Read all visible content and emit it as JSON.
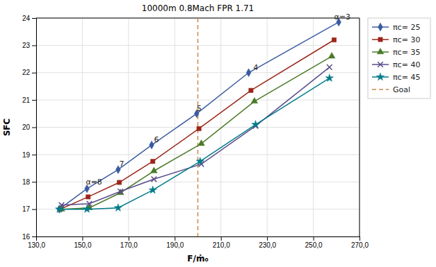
{
  "chart_data": {
    "type": "line",
    "title": "10000m 0.8Mach FPR 1.71",
    "x_label": "F/ṁ₀",
    "y_label": "SFC",
    "xlim": [
      130.0,
      270.0
    ],
    "ylim": [
      16.0,
      24.0
    ],
    "xticks": [
      {
        "value": 130.0,
        "label": "130,0"
      },
      {
        "value": 150.0,
        "label": "150,0"
      },
      {
        "value": 170.0,
        "label": "170,0"
      },
      {
        "value": 190.0,
        "label": "190,0"
      },
      {
        "value": 210.0,
        "label": "210,0"
      },
      {
        "value": 230.0,
        "label": "230,0"
      },
      {
        "value": 250.0,
        "label": "250,0"
      },
      {
        "value": 270.0,
        "label": "270,0"
      }
    ],
    "yticks": [
      16,
      17,
      18,
      19,
      20,
      21,
      22,
      23,
      24
    ],
    "grid": true,
    "legend": "right",
    "series": [
      {
        "name": "πc= 25",
        "color": "#3A5BA0",
        "marker": "diamond",
        "x": [
          140.0,
          152.0,
          165.5,
          180.0,
          199.5,
          222.0,
          261.0
        ],
        "values": [
          17.0,
          17.75,
          18.45,
          19.35,
          20.5,
          22.0,
          23.85
        ]
      },
      {
        "name": "πc= 30",
        "color": "#9B2518",
        "marker": "square",
        "x": [
          140.5,
          152.5,
          166.0,
          180.5,
          200.5,
          223.0,
          259.0
        ],
        "values": [
          17.0,
          17.45,
          17.98,
          18.75,
          19.95,
          21.35,
          23.2
        ]
      },
      {
        "name": "πc= 35",
        "color": "#4A7A28",
        "marker": "triangle",
        "x": [
          141.0,
          153.0,
          166.5,
          181.0,
          201.5,
          224.5,
          258.0
        ],
        "values": [
          17.0,
          17.05,
          17.6,
          18.4,
          19.4,
          20.95,
          22.6
        ]
      },
      {
        "name": "πc= 40",
        "color": "#5A4A8A",
        "marker": "cross",
        "x": [
          141.0,
          153.0,
          166.5,
          181.0,
          201.5,
          225.0,
          257.0
        ],
        "values": [
          17.15,
          17.2,
          17.65,
          18.1,
          18.65,
          20.05,
          22.2
        ]
      },
      {
        "name": "πc= 45",
        "color": "#007B8A",
        "marker": "star",
        "x": [
          140.0,
          152.0,
          165.5,
          180.5,
          201.0,
          225.0,
          257.0
        ],
        "values": [
          17.0,
          17.0,
          17.05,
          17.7,
          18.75,
          20.1,
          21.8
        ]
      }
    ],
    "vlines": [
      {
        "name": "Goal",
        "x": 200.0,
        "color": "#CC8844",
        "line_style": "dashed"
      }
    ],
    "annotations": [
      {
        "text": "α=3",
        "x": 259.0,
        "y": 23.9
      },
      {
        "text": "4",
        "x": 224.0,
        "y": 22.05
      },
      {
        "text": "5",
        "x": 199.5,
        "y": 20.55
      },
      {
        "text": "6",
        "x": 181.0,
        "y": 19.4
      },
      {
        "text": "7",
        "x": 166.0,
        "y": 18.5
      },
      {
        "text": "α=8",
        "x": 151.5,
        "y": 17.85
      }
    ]
  }
}
